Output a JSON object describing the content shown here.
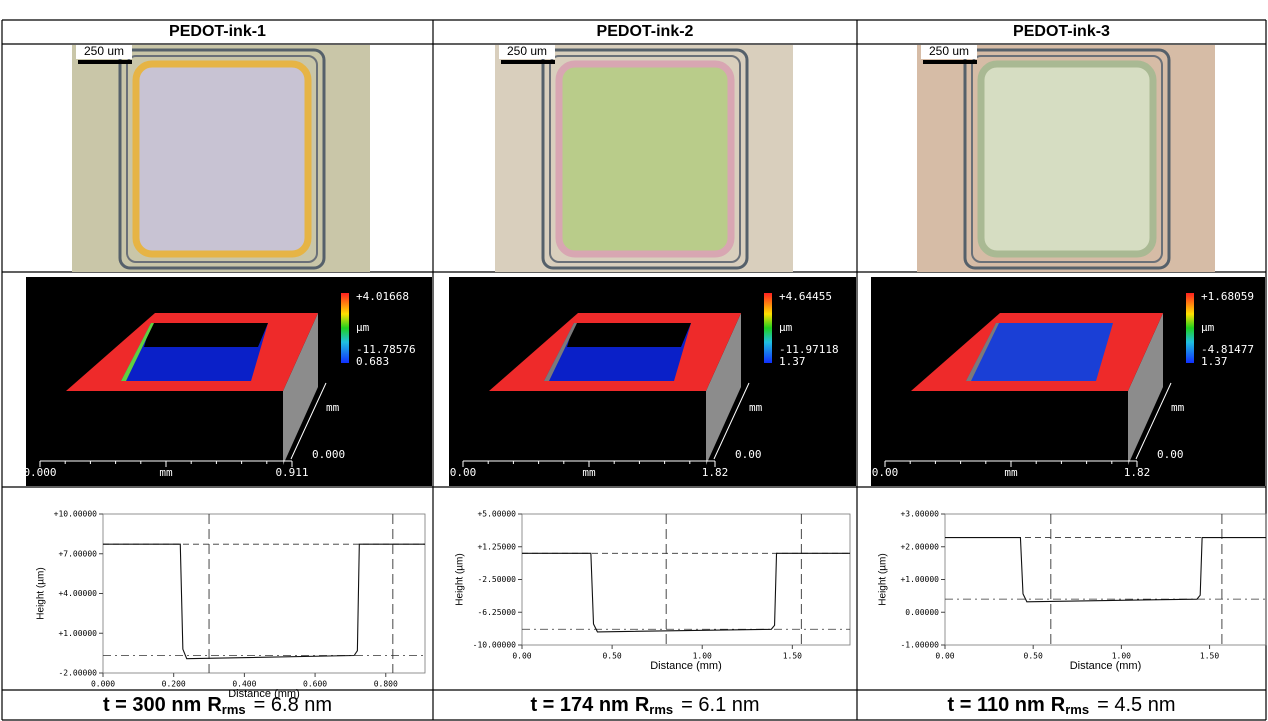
{
  "columns": [
    {
      "title": "PEDOT-ink-1",
      "scale_bar": "250 um",
      "render": {
        "max": "+4.01668",
        "unit": "µm",
        "min": "-11.78576",
        "depth": "0.683",
        "y_unit": "mm",
        "y_min": "0.000",
        "x_min": "0.000",
        "x_unit": "mm",
        "x_max": "0.911"
      },
      "profile": {
        "yticks": [
          "+10.00000",
          "+7.00000",
          "+4.00000",
          "+1.00000",
          "-2.00000"
        ],
        "xticks": [
          "0.000",
          "0.200",
          "0.400",
          "0.600",
          "0.800"
        ],
        "ylabel": "Height (µm)",
        "xlabel": "Distance (mm)"
      },
      "caption": {
        "thickness": "t = 300 nm",
        "symbol": "R",
        "subscript": "rms",
        "value": "= 6.8 nm"
      }
    },
    {
      "title": "PEDOT-ink-2",
      "scale_bar": "250 um",
      "render": {
        "max": "+4.64455",
        "unit": "µm",
        "min": "-11.97118",
        "depth": "1.37",
        "y_unit": "mm",
        "y_min": "0.00",
        "x_min": "0.00",
        "x_unit": "mm",
        "x_max": "1.82"
      },
      "profile": {
        "yticks": [
          "+5.00000",
          "+1.25000",
          "-2.50000",
          "-6.25000",
          "-10.00000"
        ],
        "xticks": [
          "0.00",
          "0.50",
          "1.00",
          "1.50"
        ],
        "ylabel": "Height (µm)",
        "xlabel": "Distance (mm)"
      },
      "caption": {
        "thickness": "t = 174 nm",
        "symbol": "R",
        "subscript": "rms",
        "value": "= 6.1 nm"
      }
    },
    {
      "title": "PEDOT-ink-3",
      "scale_bar": "250 um",
      "render": {
        "max": "+1.68059",
        "unit": "µm",
        "min": "-4.81477",
        "depth": "1.37",
        "y_unit": "mm",
        "y_min": "0.00",
        "x_min": "0.00",
        "x_unit": "mm",
        "x_max": "1.82"
      },
      "profile": {
        "yticks": [
          "+3.00000",
          "+2.00000",
          "+1.00000",
          "0.00000",
          "-1.00000"
        ],
        "xticks": [
          "0.00",
          "0.50",
          "1.00",
          "1.50"
        ],
        "ylabel": "Height (µm)",
        "xlabel": "Distance (mm)"
      },
      "caption": {
        "thickness": "t = 110 nm",
        "symbol": "R",
        "subscript": "rms",
        "value": "= 4.5 nm"
      }
    }
  ]
}
